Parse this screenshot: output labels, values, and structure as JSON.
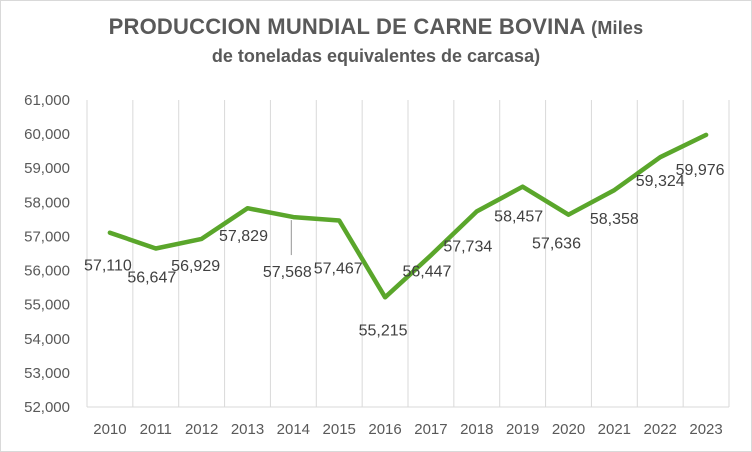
{
  "chart_data": {
    "type": "line",
    "title": "PRODUCCION MUNDIAL DE CARNE BOVINA",
    "subtitle_inline": "(Miles",
    "subtitle_line2": "de toneladas equivalentes de carcasa)",
    "xlabel": "",
    "ylabel": "",
    "x": [
      "2010",
      "2011",
      "2012",
      "2013",
      "2014",
      "2015",
      "2016",
      "2017",
      "2018",
      "2019",
      "2020",
      "2021",
      "2022",
      "2023"
    ],
    "series": [
      {
        "values": [
          57110,
          56647,
          56929,
          57829,
          57568,
          57467,
          55215,
          56447,
          57734,
          58457,
          57636,
          58358,
          59324,
          59976
        ],
        "labels": [
          "57,110",
          "56,647",
          "56,929",
          "57,829",
          "57,568",
          "57,467",
          "55,215",
          "56,447",
          "57,734",
          "58,457",
          "57,636",
          "58,358",
          "59,324",
          "59,976"
        ]
      }
    ],
    "ylim": [
      52000,
      61000
    ],
    "yticks": [
      52000,
      53000,
      54000,
      55000,
      56000,
      57000,
      58000,
      59000,
      60000,
      61000
    ],
    "ytick_labels": [
      "52,000",
      "53,000",
      "54,000",
      "55,000",
      "56,000",
      "57,000",
      "58,000",
      "59,000",
      "60,000",
      "61,000"
    ],
    "grid": "vertical",
    "line_color": "#5aa62b",
    "grid_color": "#d9d9d9"
  }
}
